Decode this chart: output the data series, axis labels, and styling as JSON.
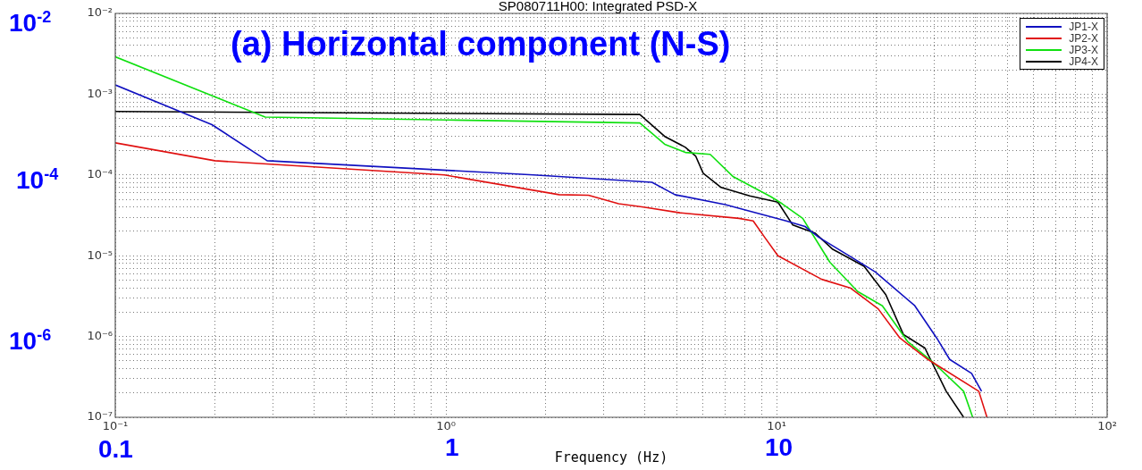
{
  "chart_data": {
    "type": "line",
    "title": "SP080711H00: Integrated PSD-X",
    "subtitle": "(a) Horizontal component (N-S)",
    "xlabel": "Frequency (Hz)",
    "log": "xy",
    "grid": true,
    "legend": "top right",
    "marker": "none",
    "line_style": "solid",
    "xlim": [
      0.1,
      100
    ],
    "ylim": [
      1e-07,
      0.01
    ],
    "xticks": [
      {
        "value": 0.1,
        "label": "10⁻¹"
      },
      {
        "value": 0.2,
        "label": null
      },
      {
        "value": 0.3,
        "label": null
      },
      {
        "value": 0.4,
        "label": null
      },
      {
        "value": 0.5,
        "label": null
      },
      {
        "value": 0.6,
        "label": null
      },
      {
        "value": 0.7,
        "label": null
      },
      {
        "value": 0.8,
        "label": null
      },
      {
        "value": 0.9,
        "label": null
      },
      {
        "value": 1,
        "label": "10⁰"
      },
      {
        "value": 2,
        "label": null
      },
      {
        "value": 3,
        "label": null
      },
      {
        "value": 4,
        "label": null
      },
      {
        "value": 5,
        "label": null
      },
      {
        "value": 6,
        "label": null
      },
      {
        "value": 7,
        "label": null
      },
      {
        "value": 8,
        "label": null
      },
      {
        "value": 9,
        "label": null
      },
      {
        "value": 10,
        "label": "10¹"
      },
      {
        "value": 20,
        "label": null
      },
      {
        "value": 30,
        "label": null
      },
      {
        "value": 40,
        "label": null
      },
      {
        "value": 50,
        "label": null
      },
      {
        "value": 60,
        "label": null
      },
      {
        "value": 70,
        "label": null
      },
      {
        "value": 80,
        "label": null
      },
      {
        "value": 90,
        "label": null
      },
      {
        "value": 100,
        "label": "10²"
      }
    ],
    "yticks": [
      {
        "value": 1e-07,
        "label": "10⁻⁷"
      },
      {
        "value": 2e-07,
        "label": null
      },
      {
        "value": 3e-07,
        "label": null
      },
      {
        "value": 4e-07,
        "label": null
      },
      {
        "value": 5e-07,
        "label": null
      },
      {
        "value": 6e-07,
        "label": null
      },
      {
        "value": 7e-07,
        "label": null
      },
      {
        "value": 8e-07,
        "label": null
      },
      {
        "value": 9e-07,
        "label": null
      },
      {
        "value": 1e-06,
        "label": "10⁻⁶"
      },
      {
        "value": 2e-06,
        "label": null
      },
      {
        "value": 3e-06,
        "label": null
      },
      {
        "value": 4e-06,
        "label": null
      },
      {
        "value": 5e-06,
        "label": null
      },
      {
        "value": 6e-06,
        "label": null
      },
      {
        "value": 7e-06,
        "label": null
      },
      {
        "value": 8e-06,
        "label": null
      },
      {
        "value": 9e-06,
        "label": null
      },
      {
        "value": 1e-05,
        "label": "10⁻⁵"
      },
      {
        "value": 2e-05,
        "label": null
      },
      {
        "value": 3e-05,
        "label": null
      },
      {
        "value": 4e-05,
        "label": null
      },
      {
        "value": 5e-05,
        "label": null
      },
      {
        "value": 6e-05,
        "label": null
      },
      {
        "value": 7e-05,
        "label": null
      },
      {
        "value": 8e-05,
        "label": null
      },
      {
        "value": 9e-05,
        "label": null
      },
      {
        "value": 0.0001,
        "label": "10⁻⁴"
      },
      {
        "value": 0.0002,
        "label": null
      },
      {
        "value": 0.0003,
        "label": null
      },
      {
        "value": 0.0004,
        "label": null
      },
      {
        "value": 0.0005,
        "label": null
      },
      {
        "value": 0.0006,
        "label": null
      },
      {
        "value": 0.0007,
        "label": null
      },
      {
        "value": 0.0008,
        "label": null
      },
      {
        "value": 0.0009,
        "label": null
      },
      {
        "value": 0.001,
        "label": "10⁻³"
      },
      {
        "value": 0.002,
        "label": null
      },
      {
        "value": 0.003,
        "label": null
      },
      {
        "value": 0.004,
        "label": null
      },
      {
        "value": 0.005,
        "label": null
      },
      {
        "value": 0.006,
        "label": null
      },
      {
        "value": 0.007,
        "label": null
      },
      {
        "value": 0.008,
        "label": null
      },
      {
        "value": 0.009,
        "label": null
      },
      {
        "value": 0.01,
        "label": "10⁻²"
      }
    ],
    "annotations": [
      "10$^{-2}$",
      "10$^{-4}$",
      "10$^{-6}$",
      "0.1",
      "1",
      "10"
    ],
    "series": [
      {
        "name": "JP1-X",
        "color": "#1010c0",
        "x": [
          0.1,
          0.196,
          0.288,
          1.84,
          4.2,
          4.93,
          7.0,
          10.7,
          12.2,
          13.4,
          17.2,
          19.9,
          26.2,
          30.5,
          33.4,
          38.9,
          41.7
        ],
        "values": [
          0.0013,
          0.00042,
          0.00015,
          0.0001,
          8.1e-05,
          5.7e-05,
          4.3e-05,
          2.7e-05,
          2.3e-05,
          1.7e-05,
          9.1e-06,
          6.3e-06,
          2.4e-06,
          9.6e-07,
          5.2e-07,
          3.5e-07,
          2.1e-07
        ]
      },
      {
        "name": "JP2-X",
        "color": "#e01010",
        "x": [
          0.1,
          0.2,
          0.99,
          2.2,
          2.7,
          3.33,
          3.96,
          5.1,
          7.7,
          8.5,
          9.2,
          10.1,
          13.7,
          16.7,
          20.3,
          23.6,
          28.7,
          40.9,
          43.3
        ],
        "values": [
          0.00025,
          0.00015,
          0.0001,
          5.7e-05,
          5.6e-05,
          4.4e-05,
          4e-05,
          3.4e-05,
          2.9e-05,
          2.7e-05,
          1.7e-05,
          1e-05,
          5.1e-06,
          4e-06,
          2.2e-06,
          9.6e-07,
          5.2e-07,
          2.1e-07,
          1e-07
        ]
      },
      {
        "name": "JP3-X",
        "color": "#10e010",
        "x": [
          0.1,
          0.284,
          1.0,
          3.86,
          4.59,
          5.3,
          6.3,
          7.4,
          9.6,
          10.4,
          12.0,
          13.4,
          14.5,
          17.6,
          20.9,
          24.9,
          29.9,
          36.8,
          39.2
        ],
        "values": [
          0.0029,
          0.00052,
          0.00048,
          0.00044,
          0.00024,
          0.00019,
          0.00018,
          9.5e-05,
          5.4e-05,
          4.4e-05,
          2.9e-05,
          1.4e-05,
          8.3e-06,
          3.6e-06,
          2.4e-06,
          8.7e-07,
          4.7e-07,
          2.1e-07,
          1e-07
        ]
      },
      {
        "name": "JP4-X",
        "color": "#000000",
        "x": [
          0.1,
          3.86,
          4.59,
          5.3,
          5.7,
          6.0,
          6.8,
          8.3,
          10.1,
          11.2,
          13.1,
          14.8,
          18.4,
          21.4,
          24.2,
          28.1,
          32.6,
          36.8
        ],
        "values": [
          0.00061,
          0.00056,
          0.0003,
          0.00022,
          0.00017,
          0.000105,
          7e-05,
          5.5e-05,
          4.6e-05,
          2.4e-05,
          1.9e-05,
          1.2e-05,
          7.4e-06,
          3.3e-06,
          1.06e-06,
          7.2e-07,
          2.1e-07,
          1e-07
        ]
      }
    ]
  }
}
